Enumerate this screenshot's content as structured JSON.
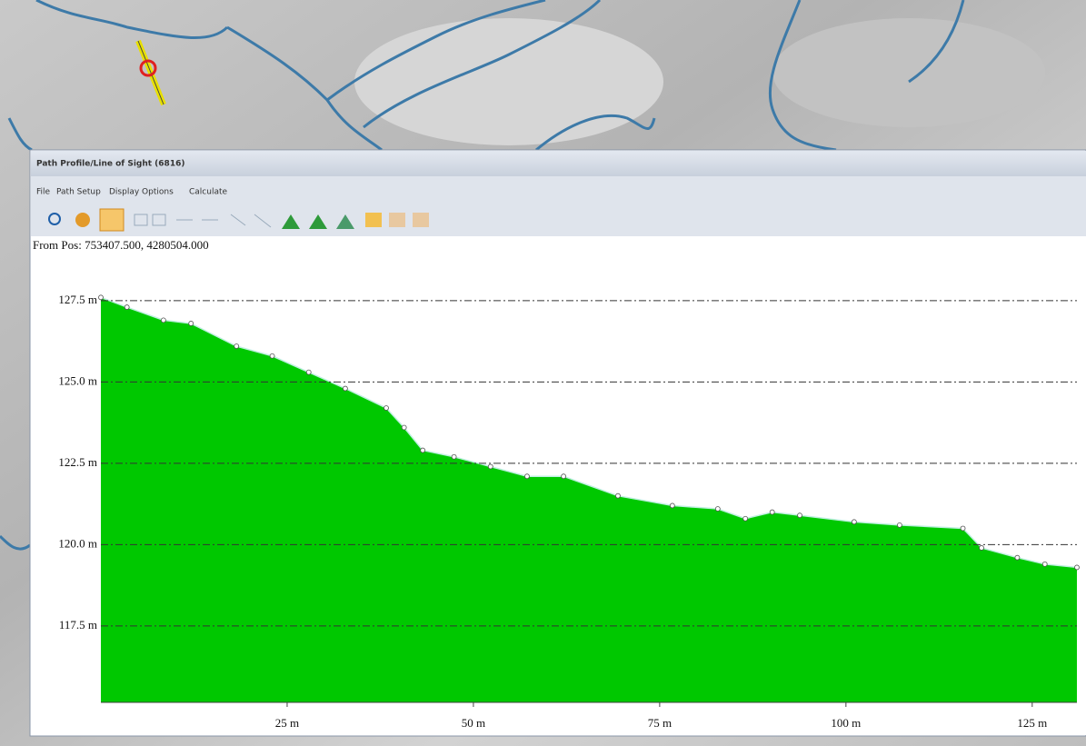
{
  "window": {
    "title": "Path Profile/Line of Sight (6816)",
    "menu": [
      "File",
      "Path Setup",
      "Display Options",
      "Calculate"
    ],
    "position": "From Pos: 753407.500, 4280504.000"
  },
  "chart_data": {
    "type": "area",
    "color": "#00c800",
    "x": [
      0,
      3.5,
      8.4,
      12.1,
      18.2,
      23.0,
      27.9,
      32.8,
      38.3,
      40.7,
      43.2,
      47.4,
      52.3,
      57.2,
      62.1,
      69.4,
      76.7,
      82.8,
      86.5,
      90.1,
      93.8,
      101.1,
      107.2,
      115.7,
      118.2,
      123.0,
      126.7,
      131
    ],
    "values": [
      127.6,
      127.3,
      126.9,
      126.8,
      126.1,
      125.8,
      125.3,
      124.8,
      124.2,
      123.6,
      122.9,
      122.7,
      122.4,
      122.1,
      122.1,
      121.5,
      121.2,
      121.1,
      120.8,
      121.0,
      120.9,
      120.7,
      120.6,
      120.5,
      119.9,
      119.6,
      119.4,
      119.3
    ],
    "xlim": [
      0,
      131
    ],
    "ylim": [
      115.15,
      128.0
    ],
    "xticks": [
      {
        "value": 25,
        "label": "25 m"
      },
      {
        "value": 50,
        "label": "50 m"
      },
      {
        "value": 75,
        "label": "75 m"
      },
      {
        "value": 100,
        "label": "100 m"
      },
      {
        "value": 125,
        "label": "125 m"
      }
    ],
    "yticks": [
      {
        "value": 117.5,
        "label": "117.5 m"
      },
      {
        "value": 120.0,
        "label": "120.0 m"
      },
      {
        "value": 122.5,
        "label": "122.5 m"
      },
      {
        "value": 125.0,
        "label": "125.0 m"
      },
      {
        "value": 127.5,
        "label": "127.5 m"
      }
    ],
    "grid": true
  }
}
